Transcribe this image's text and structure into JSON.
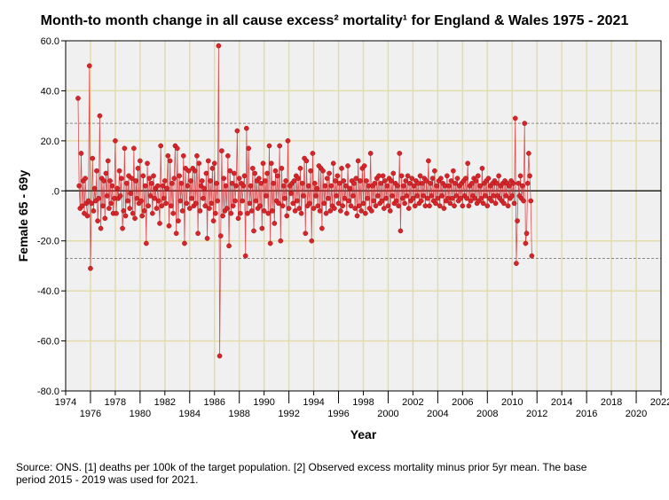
{
  "chart_data": {
    "type": "line",
    "title": "Month-to month change in all cause excess² mortality¹  for England & Wales 1975 - 2021",
    "xlabel": "Year",
    "ylabel": "Female 65 - 69y",
    "xlim": [
      1974,
      2022
    ],
    "ylim": [
      -80,
      60
    ],
    "yticks": [
      60,
      40,
      20,
      0,
      -20,
      -40,
      -60,
      -80
    ],
    "ytick_labels": [
      "60.0",
      "40.0",
      "20.0",
      ".0",
      "-20.0",
      "-40.0",
      "-60.0",
      "-80.0"
    ],
    "xticks": [
      1974,
      1976,
      1978,
      1980,
      1982,
      1984,
      1986,
      1988,
      1990,
      1992,
      1994,
      1996,
      1998,
      2000,
      2002,
      2004,
      2006,
      2008,
      2010,
      2012,
      2014,
      2016,
      2018,
      2020,
      2022
    ],
    "reference_lines": [
      27,
      -27
    ],
    "grid": true,
    "start_year": 1975,
    "monthly": true,
    "series": [
      {
        "name": "Female 65 - 69y",
        "color": "#d7262b",
        "values": [
          37,
          2,
          -7,
          15,
          -6,
          4,
          -9,
          5,
          -5,
          -10,
          -4,
          50,
          -31,
          -5,
          13,
          -8,
          1,
          -4,
          8,
          -12,
          -3,
          30,
          -15,
          5,
          -6,
          4,
          -11,
          7,
          -2,
          12,
          -7,
          4,
          -5,
          2,
          -9,
          -3,
          20,
          -9,
          1,
          -3,
          8,
          -2,
          5,
          -15,
          -8,
          17,
          -10,
          3,
          -4,
          6,
          -7,
          -1,
          5,
          -9,
          17,
          -11,
          4,
          -3,
          9,
          -5,
          12,
          -4,
          -10,
          6,
          -8,
          2,
          -21,
          11,
          -6,
          5,
          -2,
          3,
          -9,
          6,
          -3,
          1,
          -7,
          2,
          -4,
          -13,
          18,
          -6,
          2,
          -3,
          4,
          -5,
          1,
          14,
          -14,
          12,
          -6,
          3,
          -9,
          5,
          18,
          -17,
          17,
          -12,
          6,
          -4,
          3,
          -8,
          14,
          -21,
          9,
          -5,
          2,
          8,
          -7,
          4,
          -3,
          9,
          -6,
          8,
          -5,
          14,
          -17,
          11,
          -8,
          2,
          4,
          -3,
          1,
          -6,
          7,
          -19,
          12,
          -7,
          4,
          -5,
          9,
          -12,
          11,
          -9,
          3,
          -4,
          58,
          -66,
          -18,
          16,
          -10,
          5,
          -8,
          2,
          -7,
          14,
          -22,
          8,
          -9,
          3,
          -6,
          7,
          -4,
          2,
          24,
          -11,
          5,
          -9,
          3,
          -4,
          2,
          6,
          -26,
          25,
          -9,
          17,
          -5,
          2,
          -8,
          9,
          -16,
          7,
          -4,
          4,
          -7,
          5,
          -6,
          3,
          -15,
          11,
          -8,
          4,
          -2,
          7,
          -9,
          18,
          -21,
          11,
          -8,
          3,
          -13,
          8,
          -4,
          6,
          -5,
          18,
          -20,
          9,
          -6,
          2,
          -3,
          4,
          -10,
          20,
          -7,
          2,
          -1,
          3,
          -5,
          4,
          -8,
          6,
          -4,
          5,
          -7,
          9,
          -9,
          3,
          -2,
          13,
          -17,
          12,
          -6,
          2,
          -5,
          8,
          -20,
          15,
          -7,
          3,
          -2,
          1,
          -6,
          10,
          -8,
          9,
          -15,
          8,
          -5,
          2,
          -9,
          5,
          -3,
          7,
          -8,
          2,
          -6,
          11,
          -7,
          4,
          -2,
          6,
          -5,
          3,
          -8,
          9,
          -6,
          4,
          -3,
          2,
          -9,
          10,
          -4,
          1,
          -6,
          4,
          -2,
          3,
          -7,
          5,
          -10,
          12,
          -6,
          4,
          -8,
          9,
          -5,
          10,
          -9,
          4,
          -3,
          2,
          -7,
          15,
          -8,
          2,
          -4,
          3,
          -6,
          5,
          -2,
          6,
          -5,
          3,
          -4,
          6,
          -7,
          4,
          -3,
          2,
          -6,
          5,
          -8,
          4,
          -2,
          7,
          -5,
          3,
          -4,
          2,
          -6,
          15,
          -16,
          6,
          -3,
          2,
          -5,
          4,
          -2,
          6,
          -7,
          3,
          -4,
          5,
          -3,
          2,
          -6,
          4,
          -2,
          3,
          -5,
          6,
          -4,
          3,
          -2,
          5,
          -6,
          4,
          -3,
          12,
          -6,
          3,
          -2,
          5,
          -4,
          8,
          -5,
          2,
          -3,
          4,
          -6,
          5,
          -2,
          3,
          -7,
          2,
          -4,
          6,
          -3,
          2,
          -5,
          4,
          -3,
          8,
          -6,
          3,
          -2,
          5,
          -4,
          2,
          -3,
          3,
          -6,
          4,
          -2,
          5,
          -3,
          11,
          -6,
          2,
          -4,
          3,
          -2,
          5,
          -3,
          4,
          -5,
          6,
          -4,
          2,
          -3,
          9,
          -5,
          3,
          -2,
          4,
          -6,
          5,
          -3,
          2,
          -4,
          3,
          -2,
          4,
          -5,
          3,
          -2,
          6,
          -3,
          2,
          -4,
          3,
          -5,
          4,
          -2,
          3,
          -6,
          2,
          -3,
          4,
          -2,
          3,
          -5,
          29,
          -29,
          -12,
          3,
          -2,
          6,
          -3,
          2,
          -4,
          27,
          -21,
          -17,
          3,
          15,
          6,
          -4,
          -26
        ]
      }
    ]
  },
  "footer": [
    "Source: ONS. [1] deaths per 100k of the target population. [2] Observed excess mortality minus prior 5yr mean. The base",
    "period 2015 - 2019 was used for 2021."
  ]
}
